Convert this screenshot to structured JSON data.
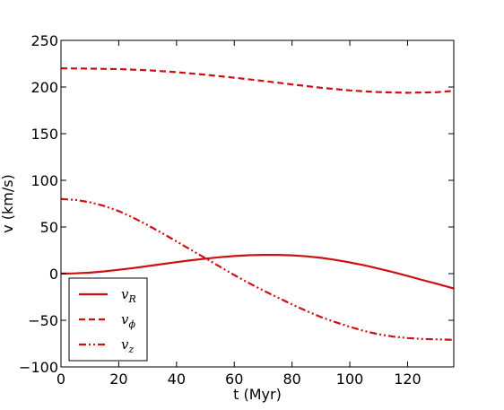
{
  "chart_data": {
    "type": "line",
    "xlabel": "t (Myr)",
    "ylabel": "v (km/s)",
    "xlim": [
      0,
      136
    ],
    "ylim": [
      -100,
      250
    ],
    "xticks": [
      0,
      20,
      40,
      60,
      80,
      100,
      120
    ],
    "yticks": [
      -100,
      -50,
      0,
      50,
      100,
      150,
      200,
      250
    ],
    "xtick_labels": [
      "0",
      "20",
      "40",
      "60",
      "80",
      "100",
      "120"
    ],
    "ytick_labels": [
      "−100",
      "−50",
      "0",
      "50",
      "100",
      "150",
      "200",
      "250"
    ],
    "grid": false,
    "legend_position": "lower-left",
    "color": "#cc1111",
    "series": [
      {
        "name": "v_R",
        "label_main": "v",
        "label_sub": "R",
        "style": "solid",
        "x": [
          0,
          5,
          10,
          15,
          20,
          25,
          30,
          35,
          40,
          45,
          50,
          55,
          60,
          65,
          70,
          75,
          80,
          85,
          90,
          95,
          100,
          105,
          110,
          115,
          120,
          125,
          130,
          136
        ],
        "y": [
          0,
          0.3,
          1.1,
          2.4,
          4.1,
          6.0,
          8.1,
          10.2,
          12.3,
          14.3,
          16.1,
          17.6,
          18.8,
          19.7,
          20.1,
          20.1,
          19.6,
          18.6,
          16.9,
          14.7,
          12.0,
          8.9,
          5.4,
          1.6,
          -2.5,
          -6.7,
          -10.8,
          -16
        ]
      },
      {
        "name": "v_phi",
        "label_main": "v",
        "label_sub": "ϕ",
        "style": "dashed",
        "x": [
          0,
          10,
          20,
          30,
          40,
          50,
          60,
          70,
          80,
          90,
          100,
          110,
          120,
          130,
          136
        ],
        "y": [
          220,
          219.7,
          219.2,
          218,
          216,
          213.2,
          210,
          206.5,
          202.8,
          199.2,
          196.3,
          194.5,
          193.8,
          194.4,
          196
        ]
      },
      {
        "name": "v_z",
        "label_main": "v",
        "label_sub": "z",
        "style": "dashdot",
        "x": [
          0,
          5,
          10,
          15,
          20,
          25,
          30,
          35,
          40,
          45,
          50,
          55,
          60,
          65,
          70,
          75,
          80,
          85,
          90,
          95,
          100,
          105,
          110,
          115,
          120,
          125,
          130,
          136
        ],
        "y": [
          80,
          79,
          76.5,
          72.5,
          67,
          60,
          52,
          43.5,
          34.5,
          25.5,
          16.5,
          7.5,
          -1.5,
          -10,
          -18,
          -25.5,
          -33,
          -40,
          -46.5,
          -52,
          -57,
          -61.5,
          -65,
          -67.5,
          -69,
          -70,
          -70.5,
          -71
        ]
      }
    ]
  }
}
